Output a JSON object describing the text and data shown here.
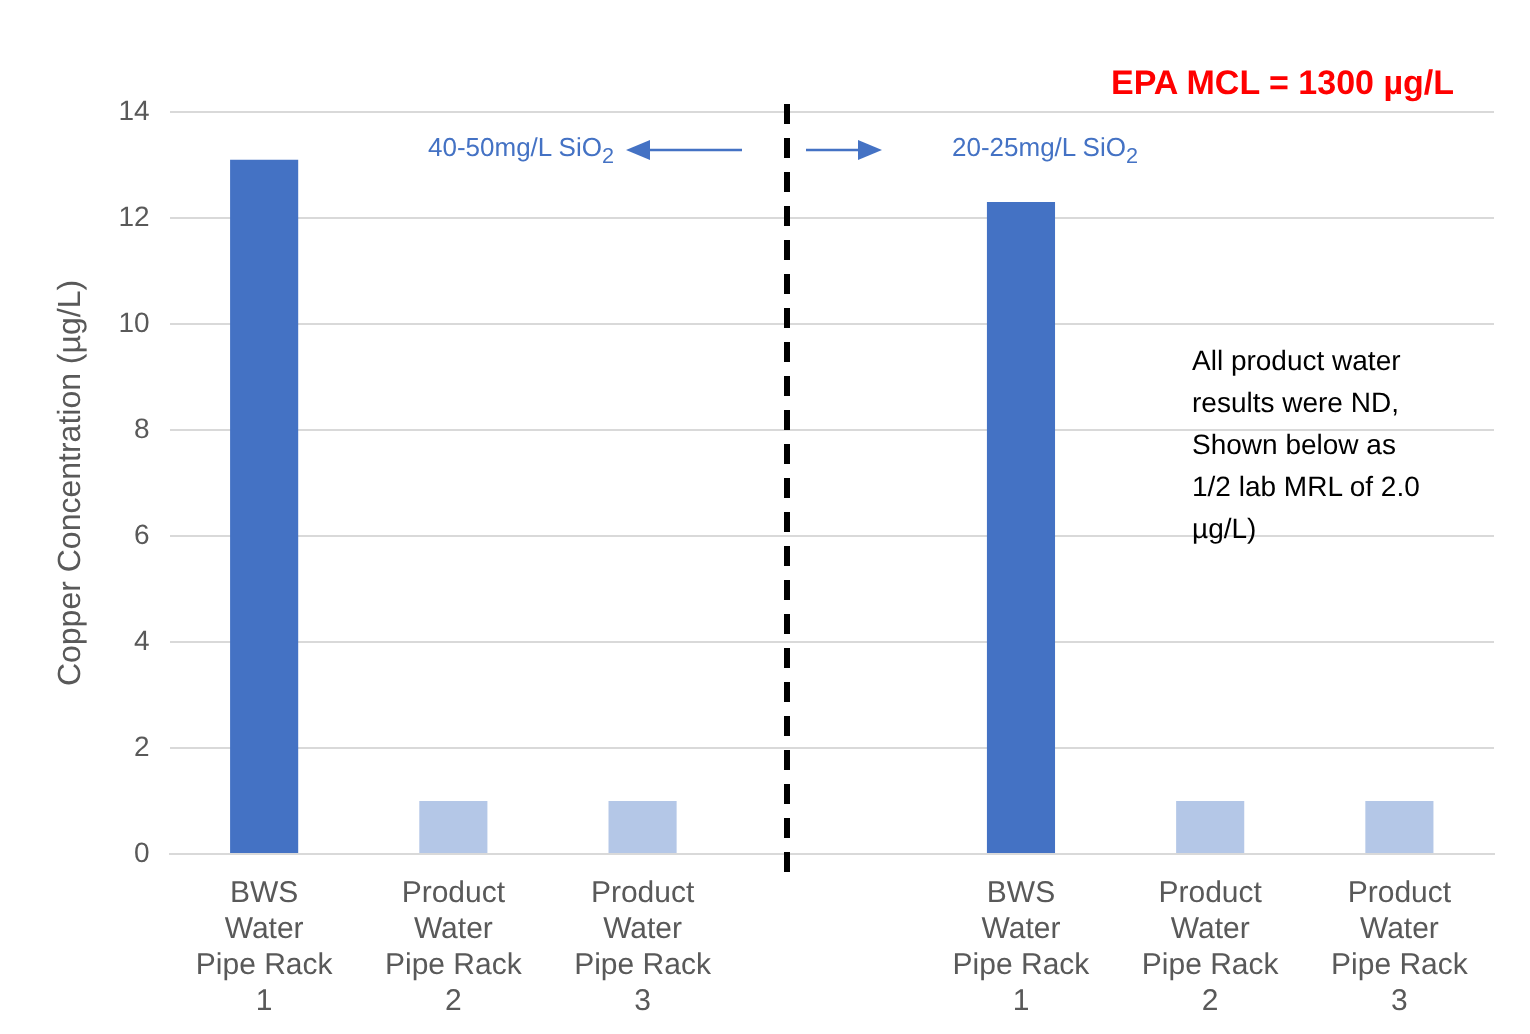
{
  "chart_data": {
    "type": "bar",
    "categories": [
      "BWS\nWater\nPipe Rack\n1",
      "Product\nWater\nPipe Rack\n2",
      "Product\nWater\nPipe Rack\n3",
      null,
      "BWS\nWater\nPipe Rack\n1",
      "Product\nWater\nPipe Rack\n2",
      "Product\nWater\nPipe Rack\n3"
    ],
    "values": [
      13.1,
      1.0,
      1.0,
      null,
      12.3,
      1.0,
      1.0
    ],
    "colors": [
      "#4472c4",
      "#b4c7e7",
      "#b4c7e7",
      null,
      "#4472c4",
      "#b4c7e7",
      "#b4c7e7"
    ],
    "ylabel": "Copper Concentration (µg/L)",
    "ylim": [
      0,
      14
    ],
    "yticks": [
      0,
      2,
      4,
      6,
      8,
      10,
      12,
      14
    ],
    "grid": "y",
    "legend": false,
    "annotations": [
      "EPA MCL = 1300 µg/L",
      "40-50mg/L SiO$_{2}$",
      "20-25mg/L SiO$_{2}$",
      "All product water results were ND, Shown below as 1/2 lab MRL of 2.0 µg/L)"
    ]
  }
}
